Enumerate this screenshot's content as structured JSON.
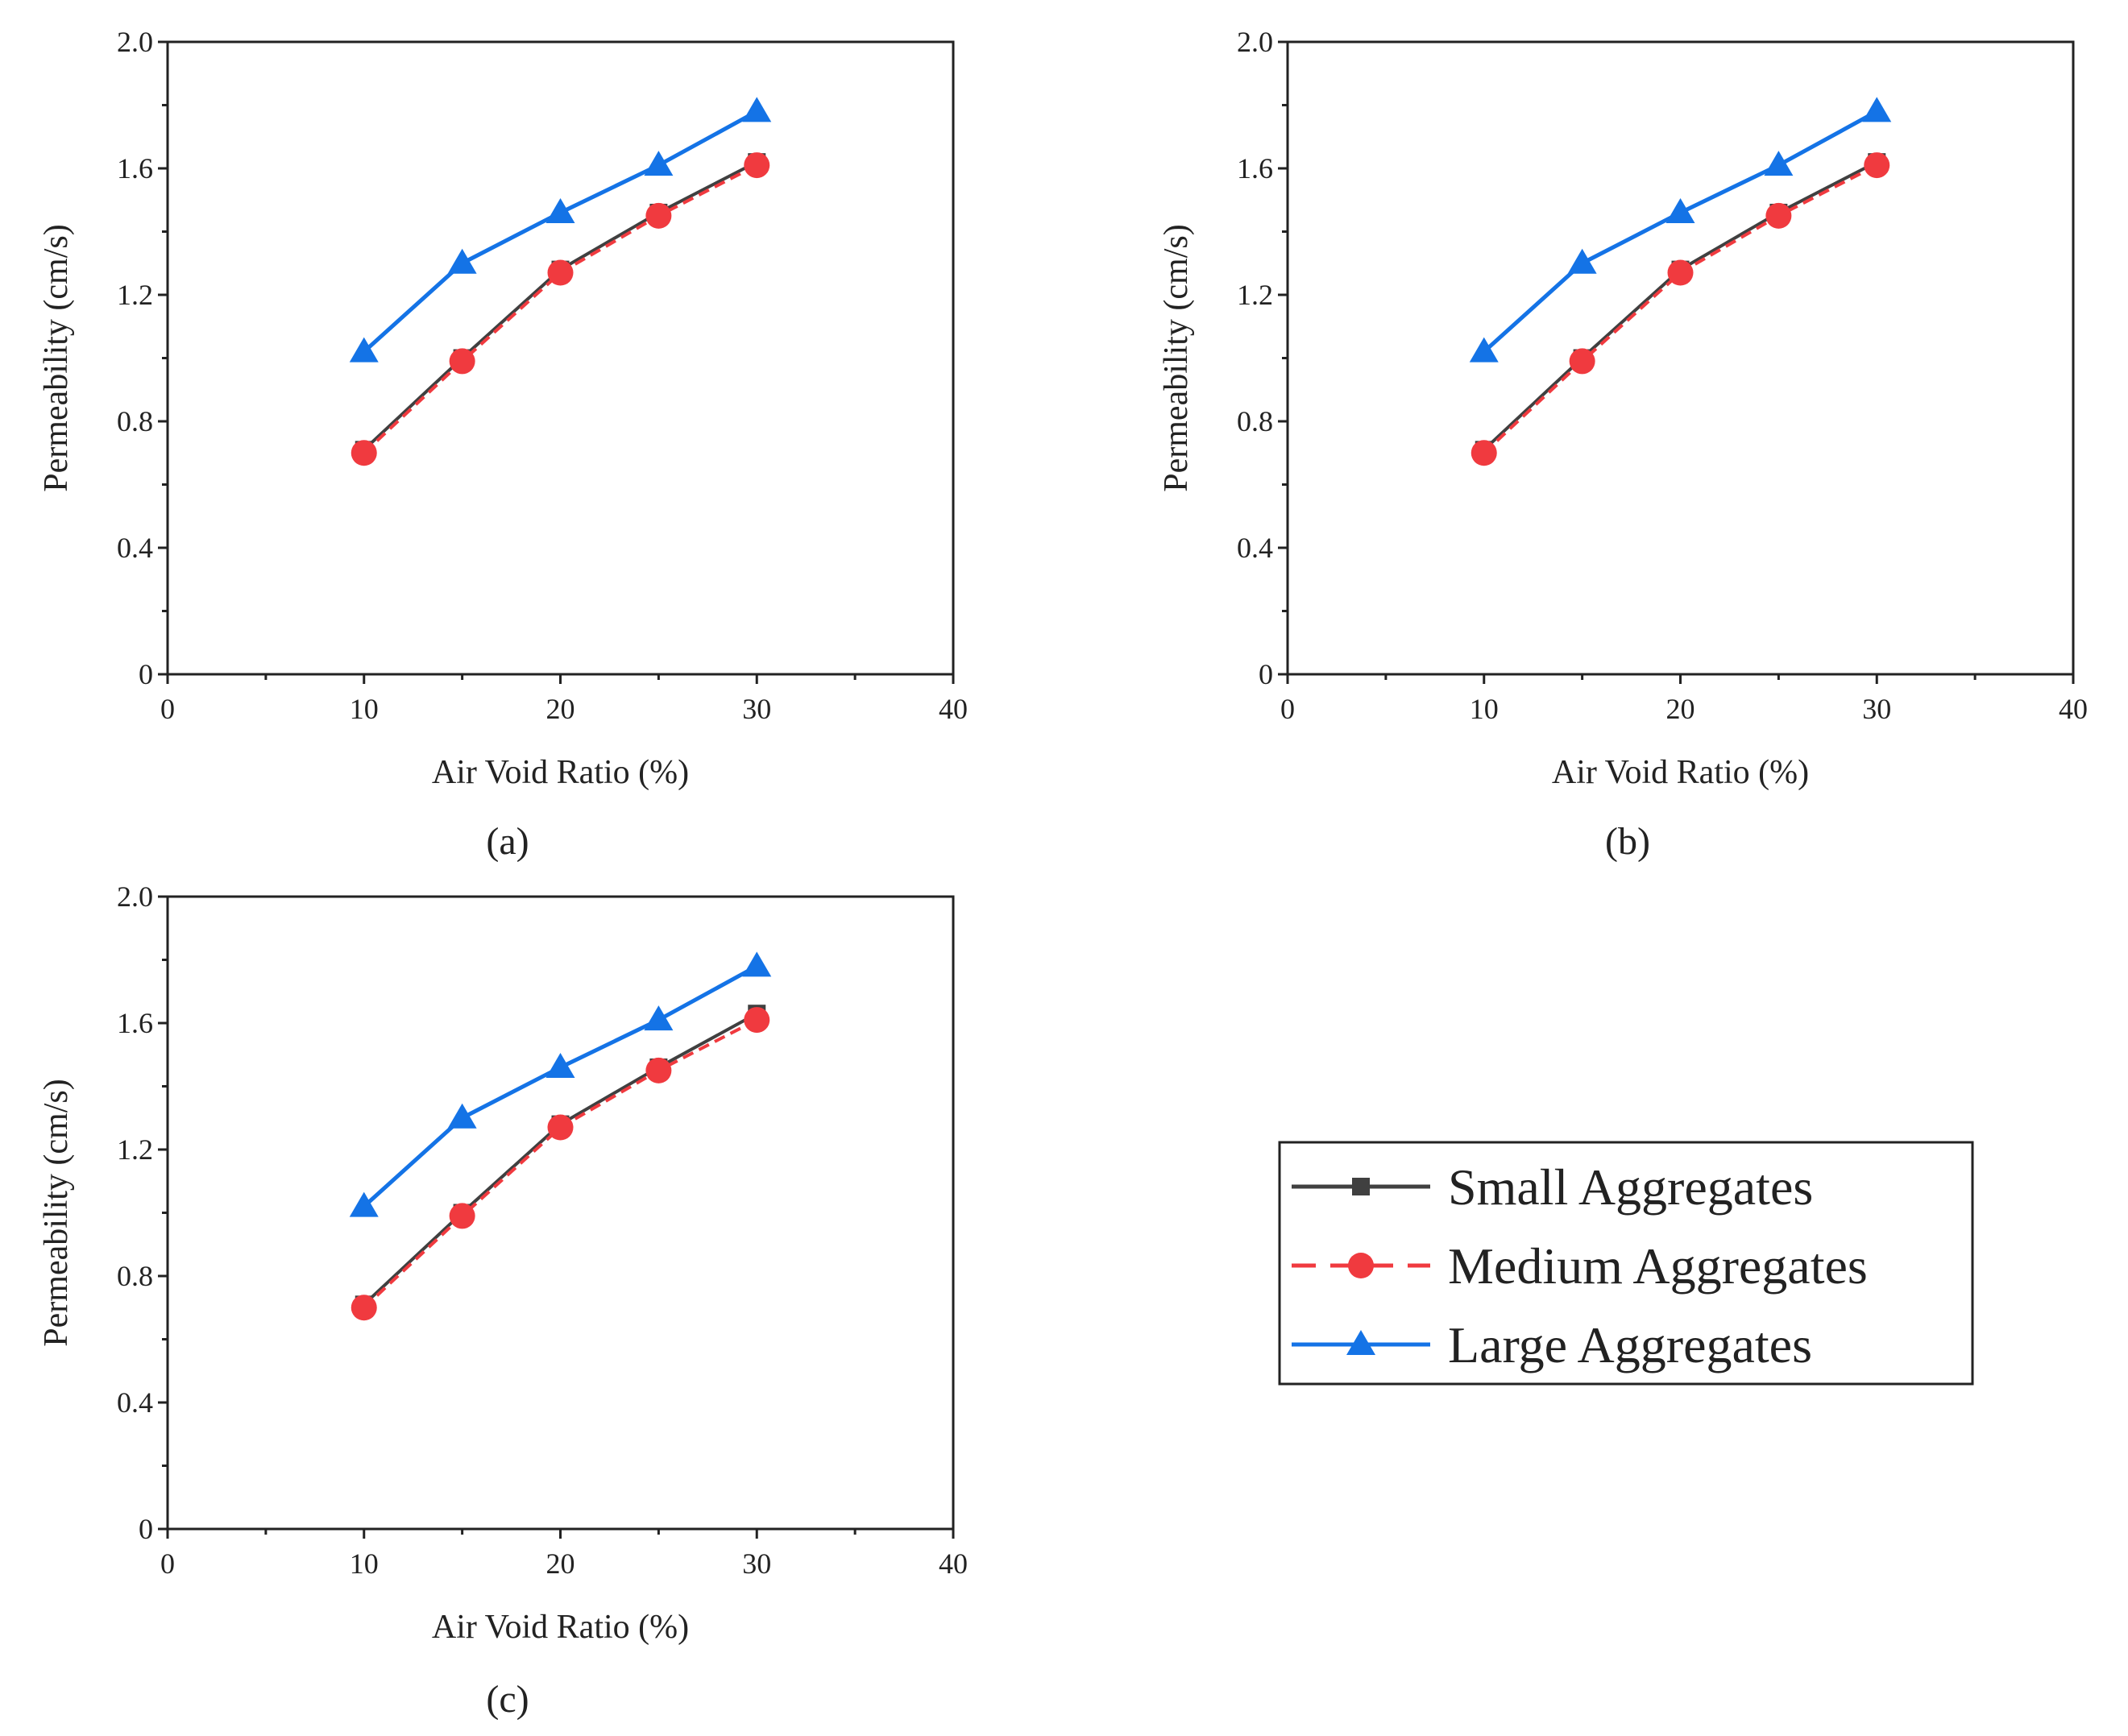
{
  "colors": {
    "small": "#404040",
    "medium": "#f03a3f",
    "large": "#1473e6",
    "axis": "#222222"
  },
  "legend": {
    "items": [
      {
        "series": "small",
        "label": "Small Aggregates"
      },
      {
        "series": "medium",
        "label": "Medium Aggregates"
      },
      {
        "series": "large",
        "label": "Large Aggregates"
      }
    ]
  },
  "chart_data": [
    {
      "type": "line",
      "panel_label": "(a)",
      "xlabel": "Air Void Ratio (%)",
      "ylabel": "Permeability (cm/s)",
      "xlim": [
        0,
        40
      ],
      "ylim": [
        0,
        2.0
      ],
      "xticks": [
        "0",
        "10",
        "20",
        "30",
        "40"
      ],
      "yticks": [
        "0",
        "0.4",
        "0.8",
        "1.2",
        "1.6",
        "2.0"
      ],
      "x": [
        10,
        15,
        20,
        25,
        30
      ],
      "series": [
        {
          "key": "small",
          "name": "Small Aggregates",
          "values": [
            0.71,
            1.0,
            1.28,
            1.46,
            1.62
          ]
        },
        {
          "key": "medium",
          "name": "Medium Aggregates",
          "values": [
            0.7,
            0.99,
            1.27,
            1.45,
            1.61
          ]
        },
        {
          "key": "large",
          "name": "Large Aggregates",
          "values": [
            1.02,
            1.3,
            1.46,
            1.61,
            1.78
          ]
        }
      ]
    },
    {
      "type": "line",
      "panel_label": "(b)",
      "xlabel": "Air Void Ratio (%)",
      "ylabel": "Permeability (cm/s)",
      "xlim": [
        0,
        40
      ],
      "ylim": [
        0,
        2.0
      ],
      "xticks": [
        "0",
        "10",
        "20",
        "30",
        "40"
      ],
      "yticks": [
        "0",
        "0.4",
        "0.8",
        "1.2",
        "1.6",
        "2.0"
      ],
      "x": [
        10,
        15,
        20,
        25,
        30
      ],
      "series": [
        {
          "key": "small",
          "name": "Small Aggregates",
          "values": [
            0.71,
            1.0,
            1.28,
            1.46,
            1.62
          ]
        },
        {
          "key": "medium",
          "name": "Medium Aggregates",
          "values": [
            0.7,
            0.99,
            1.27,
            1.45,
            1.61
          ]
        },
        {
          "key": "large",
          "name": "Large Aggregates",
          "values": [
            1.02,
            1.3,
            1.46,
            1.61,
            1.78
          ]
        }
      ]
    },
    {
      "type": "line",
      "panel_label": "(c)",
      "xlabel": "Air Void Ratio (%)",
      "ylabel": "Permeability (cm/s)",
      "xlim": [
        0,
        40
      ],
      "ylim": [
        0,
        2.0
      ],
      "xticks": [
        "0",
        "10",
        "20",
        "30",
        "40"
      ],
      "yticks": [
        "0",
        "0.4",
        "0.8",
        "1.2",
        "1.6",
        "2.0"
      ],
      "x": [
        10,
        15,
        20,
        25,
        30
      ],
      "series": [
        {
          "key": "small",
          "name": "Small Aggregates",
          "values": [
            0.71,
            1.0,
            1.28,
            1.46,
            1.63
          ]
        },
        {
          "key": "medium",
          "name": "Medium Aggregates",
          "values": [
            0.7,
            0.99,
            1.27,
            1.45,
            1.61
          ]
        },
        {
          "key": "large",
          "name": "Large Aggregates",
          "values": [
            1.02,
            1.3,
            1.46,
            1.61,
            1.78
          ]
        }
      ]
    }
  ]
}
